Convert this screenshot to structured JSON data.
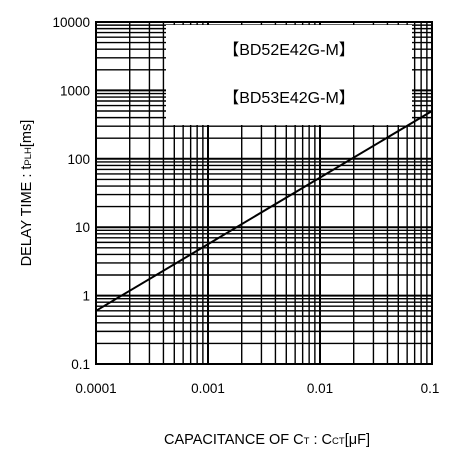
{
  "chart_data": {
    "type": "line",
    "x_scale": "log",
    "y_scale": "log",
    "xlim": [
      0.0001,
      0.1
    ],
    "ylim": [
      0.1,
      10000
    ],
    "x_ticks": [
      "0.0001",
      "0.001",
      "0.01",
      "0.1"
    ],
    "y_ticks": [
      "10000",
      "1000",
      "100",
      "10",
      "1",
      "0.1"
    ],
    "grid": true,
    "xlabel": {
      "main": "CAPACITANCE OF C",
      "sub1": "T",
      "sep": " : C",
      "sub2": "CT",
      "unit": "[μF]"
    },
    "ylabel": {
      "main": "DELAY TIME : t",
      "sub": "PLH",
      "unit": "[ms]"
    },
    "legend": [
      "【BD52E42G-M】",
      "【BD53E42G-M】"
    ],
    "legend_position": "top-right",
    "series": [
      {
        "x": [
          0.0001,
          0.1
        ],
        "y": [
          0.6,
          500
        ],
        "color": "#000000"
      }
    ]
  }
}
